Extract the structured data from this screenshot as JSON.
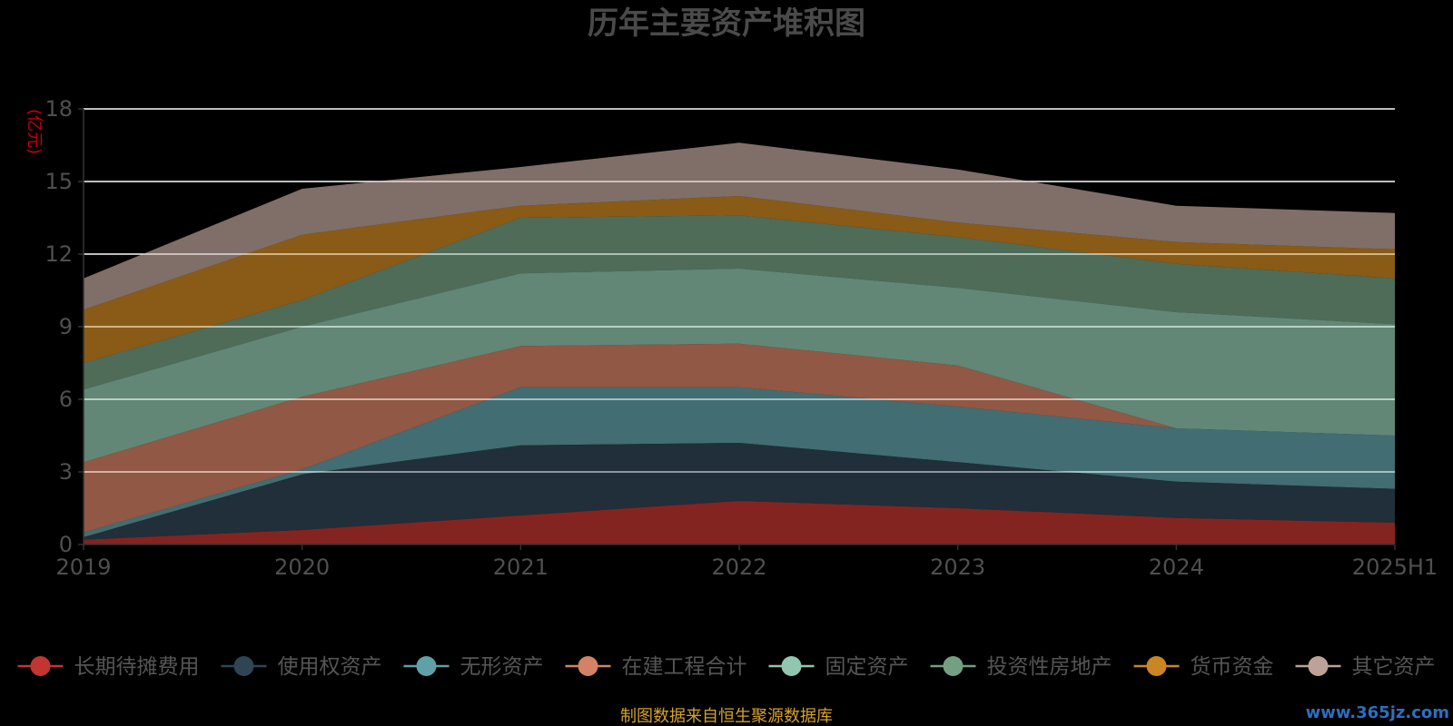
{
  "chart_data": {
    "type": "area",
    "stacked": true,
    "title": "历年主要资产堆积图",
    "unit_label": "(亿元)",
    "x": [
      "2019",
      "2020",
      "2021",
      "2022",
      "2023",
      "2024",
      "2025H1"
    ],
    "ylim": [
      0,
      18
    ],
    "yticks": [
      "0",
      "3",
      "6",
      "9",
      "12",
      "15",
      "18"
    ],
    "grid": true,
    "legend_position": "bottom",
    "series": [
      {
        "name": "长期待摊费用",
        "color": "#c23531",
        "values": [
          0.2,
          0.6,
          1.2,
          1.8,
          1.5,
          1.1,
          0.9
        ]
      },
      {
        "name": "使用权资产",
        "color": "#2f4554",
        "values": [
          0.1,
          2.3,
          2.9,
          2.4,
          1.9,
          1.5,
          1.4
        ]
      },
      {
        "name": "无形资产",
        "color": "#61a0a8",
        "values": [
          0.2,
          0.2,
          2.4,
          2.3,
          2.3,
          2.2,
          2.2
        ]
      },
      {
        "name": "在建工程合计",
        "color": "#d48265",
        "values": [
          2.9,
          3.0,
          1.7,
          1.8,
          1.7,
          0.0,
          0.0
        ]
      },
      {
        "name": "固定资产",
        "color": "#91c7ae",
        "values": [
          3.0,
          2.9,
          3.0,
          3.1,
          3.2,
          4.8,
          4.6
        ]
      },
      {
        "name": "投资性房地产",
        "color": "#749f83",
        "values": [
          1.1,
          1.1,
          2.3,
          2.2,
          2.1,
          2.0,
          1.9
        ]
      },
      {
        "name": "货币资金",
        "color": "#ca8622",
        "values": [
          2.2,
          2.7,
          0.5,
          0.8,
          0.6,
          0.9,
          1.2
        ]
      },
      {
        "name": "其它资产",
        "color": "#bda29a",
        "values": [
          1.3,
          1.9,
          1.6,
          2.2,
          2.2,
          1.5,
          1.5
        ]
      }
    ]
  },
  "footer": {
    "source": "制图数据来自恒生聚源数据库",
    "watermark": "www.365jz.com"
  }
}
